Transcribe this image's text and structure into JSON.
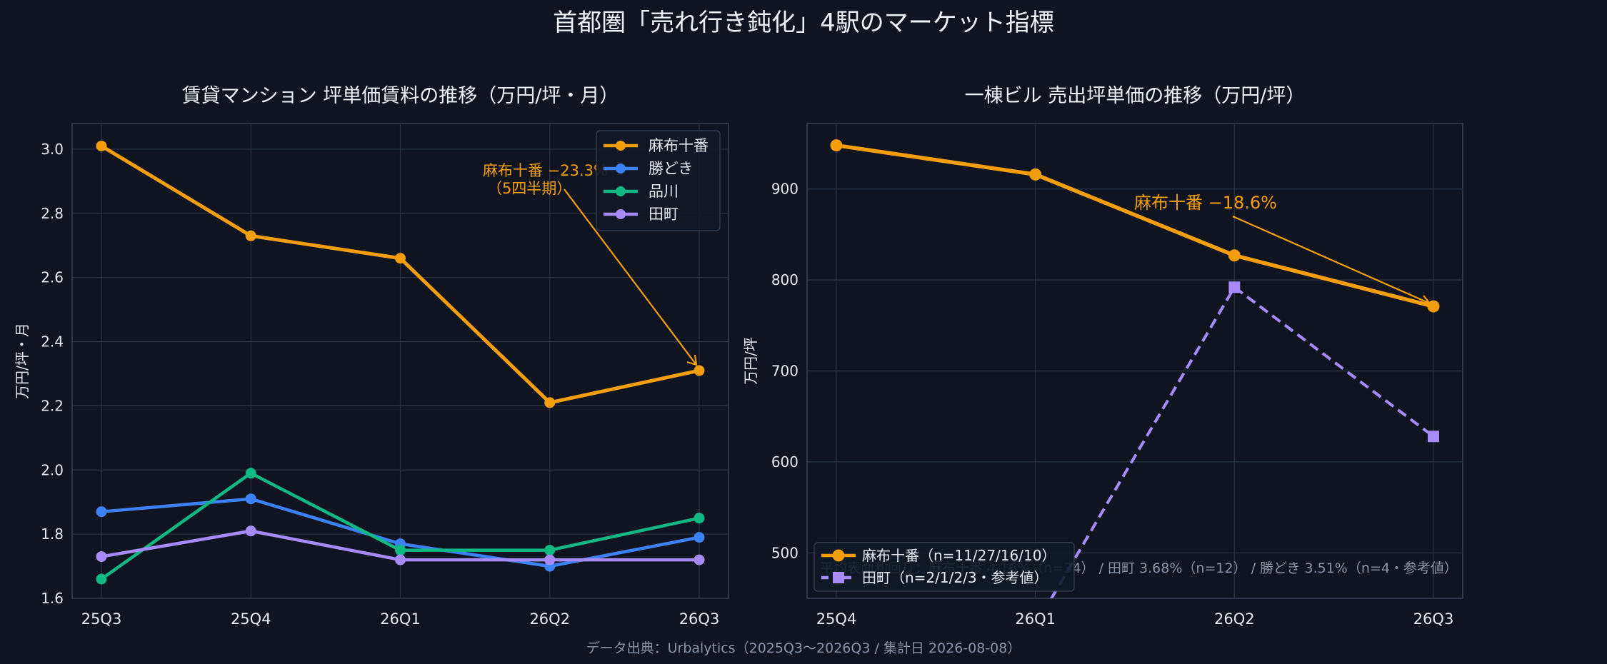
{
  "title": "首都圏「売れ行き鈍化」4駅のマーケット指標",
  "footer": "データ出典：Urbalytics（2025Q3〜2026Q3 / 集計日 2026-08-08）",
  "chart_data": [
    {
      "type": "line",
      "title": "賃貸マンション 坪単価賃料の推移（万円/坪・月）",
      "xlabel": "",
      "ylabel": "万円/坪・月",
      "categories": [
        "25Q3",
        "25Q4",
        "26Q1",
        "26Q2",
        "26Q3"
      ],
      "ylim": [
        1.6,
        3.08
      ],
      "yticks": [
        1.6,
        1.8,
        2.0,
        2.2,
        2.4,
        2.6,
        2.8,
        3.0
      ],
      "ytick_labels": [
        "1.6",
        "1.8",
        "2.0",
        "2.2",
        "2.4",
        "2.6",
        "2.8",
        "3.0"
      ],
      "grid": true,
      "legend": "top-right",
      "series": [
        {
          "name": "麻布十番",
          "color": "#f59e0b",
          "values": [
            3.01,
            2.73,
            2.66,
            2.21,
            2.31
          ]
        },
        {
          "name": "勝どき",
          "color": "#3b82f6",
          "values": [
            1.87,
            1.91,
            1.77,
            1.7,
            1.79
          ]
        },
        {
          "name": "品川",
          "color": "#10b981",
          "values": [
            1.66,
            1.99,
            1.75,
            1.75,
            1.85
          ]
        },
        {
          "name": "田町",
          "color": "#a78bfa",
          "values": [
            1.73,
            1.81,
            1.72,
            1.72,
            1.72
          ]
        }
      ],
      "annotation": {
        "line1": "麻布十番 −23.3%",
        "line2": "（5四半期）",
        "color": "#f59e0b"
      }
    },
    {
      "type": "line",
      "title": "一棟ビル 売出坪単価の推移（万円/坪）",
      "xlabel": "",
      "ylabel": "万円/坪",
      "categories": [
        "25Q4",
        "26Q1",
        "26Q2",
        "26Q3"
      ],
      "ylim": [
        450,
        972
      ],
      "yticks": [
        500,
        600,
        700,
        800,
        900
      ],
      "ytick_labels": [
        "500",
        "600",
        "700",
        "800",
        "900"
      ],
      "grid": true,
      "legend": "lower-left",
      "series": [
        {
          "name": "麻布十番（n=11/27/16/10）",
          "color": "#f59e0b",
          "marker": "circle",
          "style": "solid",
          "values": [
            948,
            916,
            827,
            771
          ]
        },
        {
          "name": "田町（n=2/1/2/3・参考値）",
          "color": "#a78bfa",
          "marker": "square",
          "style": "dashed",
          "values": [
            null,
            420,
            792,
            628
          ]
        }
      ],
      "annotation": {
        "text": "麻布十番 −18.6%",
        "color": "#f59e0b"
      },
      "footnote": "平均表面利回り：麻布十番 4.16%（n=34） / 田町 3.68%（n=12） / 勝どき 3.51%（n=4・参考値）"
    }
  ]
}
